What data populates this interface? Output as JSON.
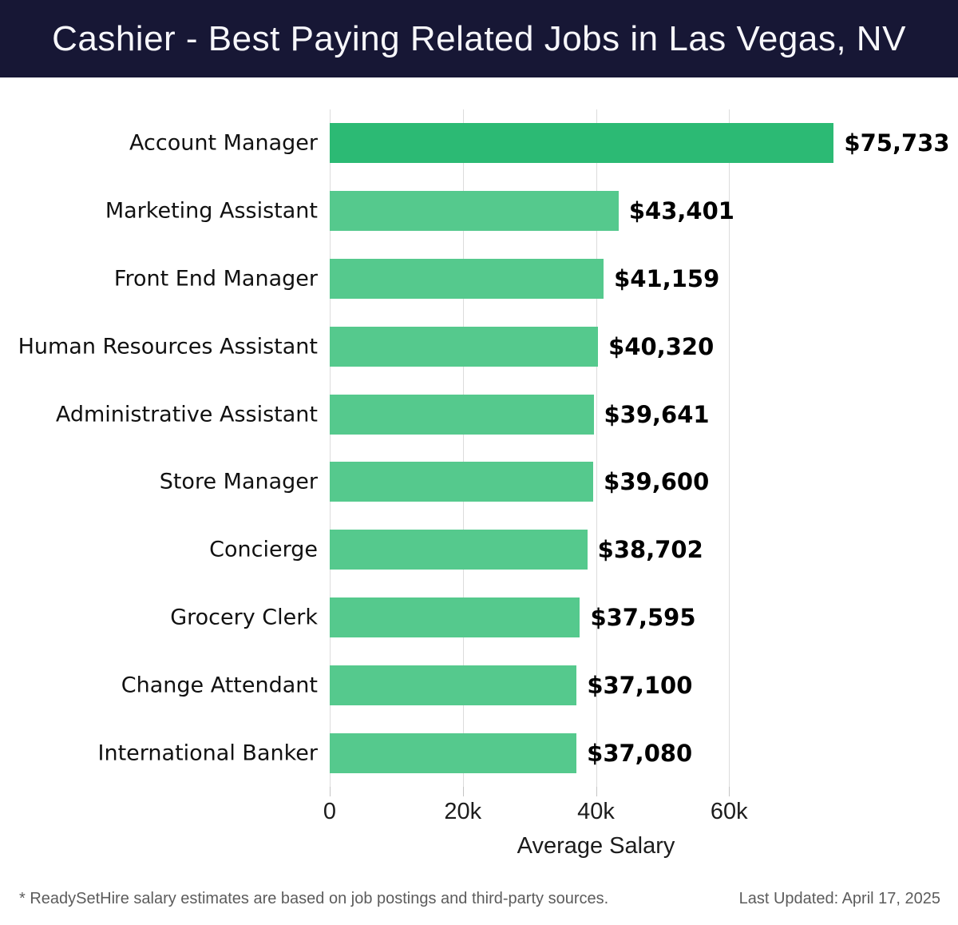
{
  "header": {
    "title": "Cashier - Best Paying Related Jobs in Las Vegas, NV",
    "background_color": "#171735",
    "text_color": "#f7f7fb"
  },
  "chart_data": {
    "type": "bar",
    "orientation": "horizontal",
    "categories": [
      "Account Manager",
      "Marketing Assistant",
      "Front End Manager",
      "Human Resources Assistant",
      "Administrative Assistant",
      "Store Manager",
      "Concierge",
      "Grocery Clerk",
      "Change Attendant",
      "International Banker"
    ],
    "values": [
      75733,
      43401,
      41159,
      40320,
      39641,
      39600,
      38702,
      37595,
      37100,
      37080
    ],
    "value_labels": [
      "$75,733",
      "$43,401",
      "$41,159",
      "$40,320",
      "$39,641",
      "$39,600",
      "$38,702",
      "$37,595",
      "$37,100",
      "$37,080"
    ],
    "xlabel": "Average Salary",
    "ylabel": "",
    "xlim": [
      0,
      80000
    ],
    "xticks": [
      0,
      20000,
      40000,
      60000
    ],
    "xtick_labels": [
      "0",
      "20k",
      "40k",
      "60k"
    ],
    "grid": true,
    "legend": false,
    "bar_color": "#55c98d",
    "highlight_color": "#2cba74",
    "highlight_index": 0
  },
  "footer": {
    "note": "* ReadySetHire salary estimates are based on job postings and third-party sources.",
    "last_updated": "Last Updated: April 17, 2025"
  }
}
